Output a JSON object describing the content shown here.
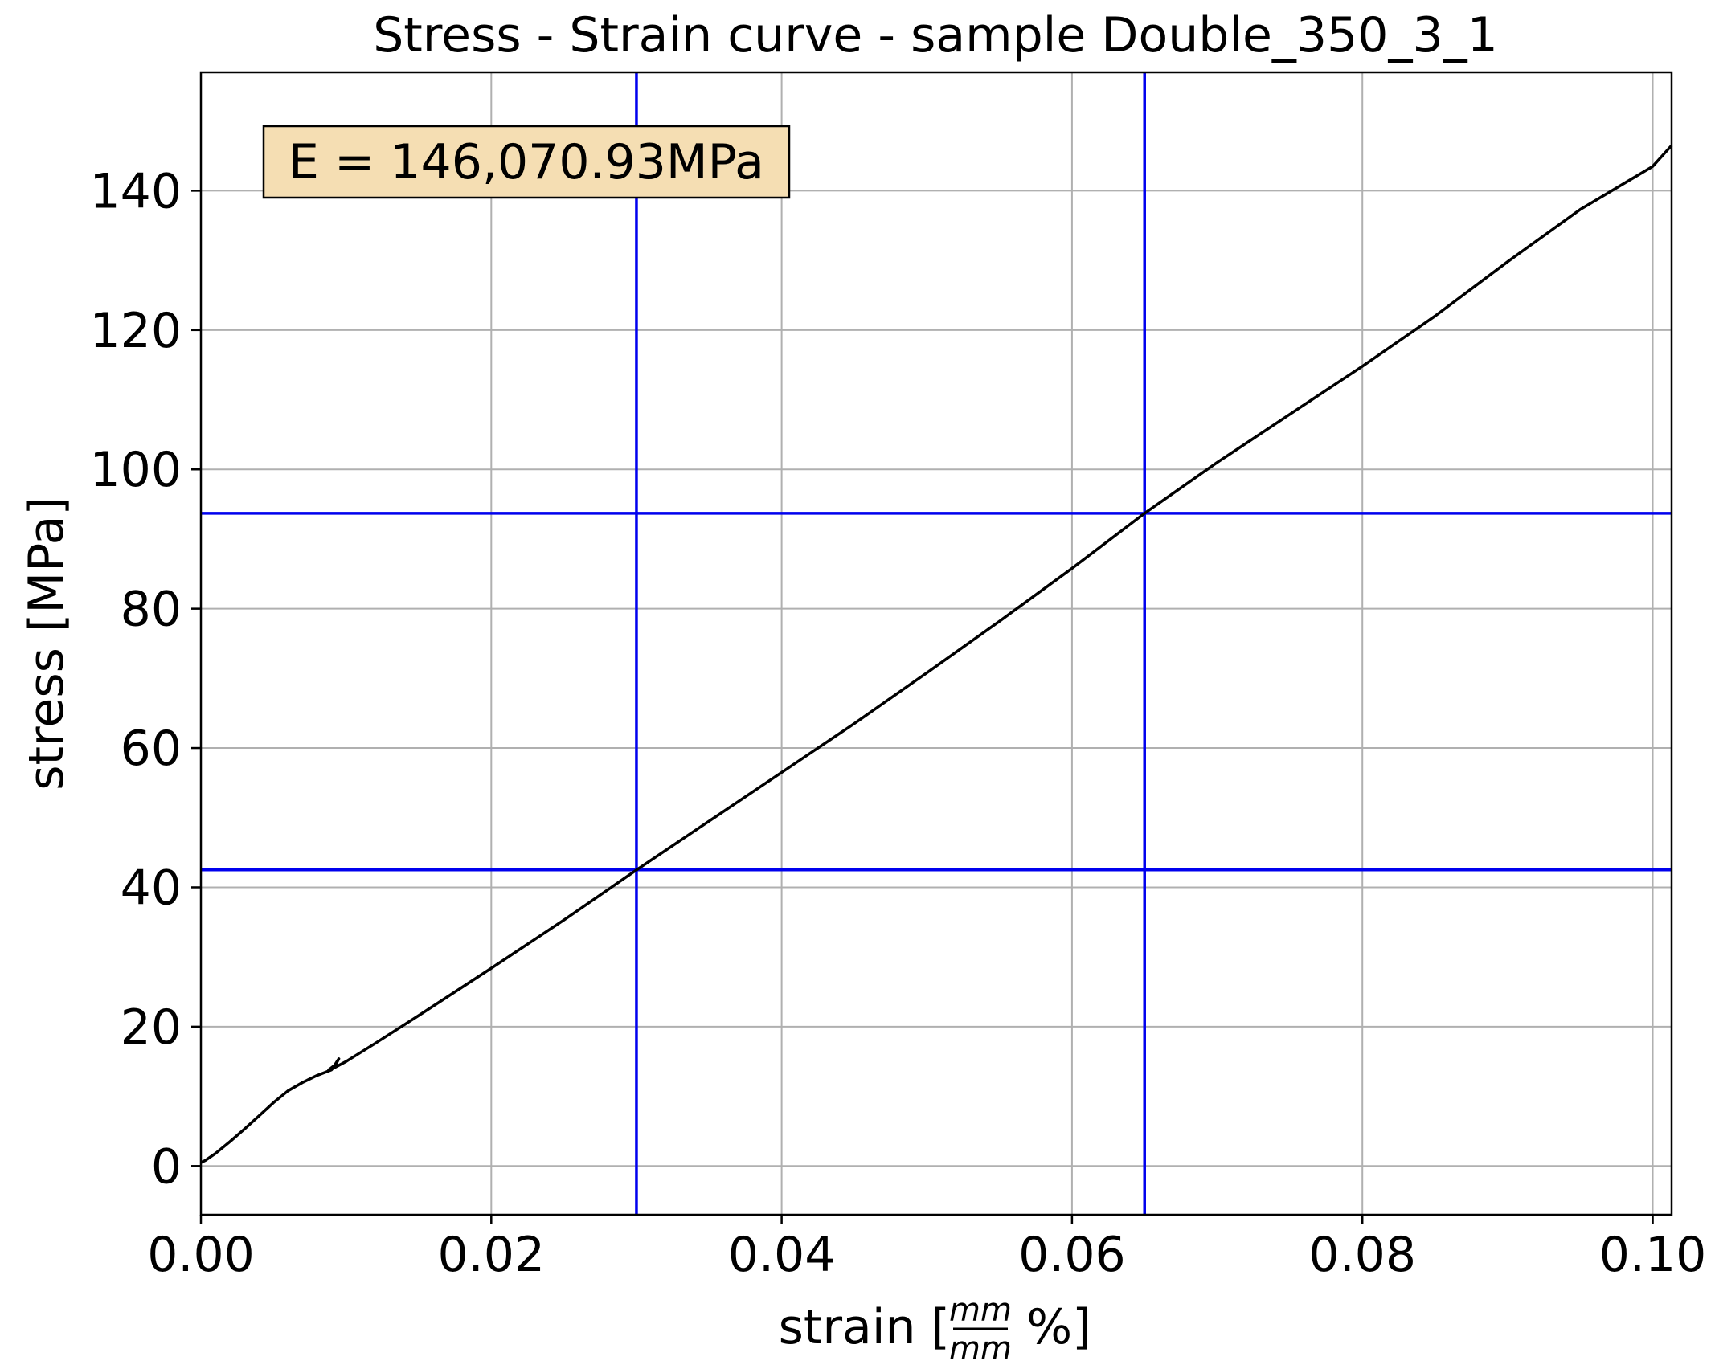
{
  "chart_data": {
    "type": "line",
    "title": "Stress - Strain curve - sample Double_350_3_1",
    "xlabel_prefix": "strain [",
    "xlabel_frac_num": "mm",
    "xlabel_frac_den": "mm",
    "xlabel_suffix": " %]",
    "ylabel": "stress [MPa]",
    "xlim": [
      0.0,
      0.1013
    ],
    "ylim": [
      -7,
      157
    ],
    "xticks": [
      0.0,
      0.02,
      0.04,
      0.06,
      0.08,
      0.1
    ],
    "xtick_labels": [
      "0.00",
      "0.02",
      "0.04",
      "0.06",
      "0.08",
      "0.10"
    ],
    "yticks": [
      0,
      20,
      40,
      60,
      80,
      100,
      120,
      140
    ],
    "ytick_labels": [
      "0",
      "20",
      "40",
      "60",
      "80",
      "100",
      "120",
      "140"
    ],
    "grid": true,
    "annotation": "E = 146,070.93MPa",
    "vlines": [
      0.03,
      0.065
    ],
    "hlines": [
      42.5,
      93.7
    ],
    "colors": {
      "curve": "#000000",
      "markers": "#0000ee",
      "grid": "#b0b0b0",
      "annotation_bg": "#f5deb3"
    },
    "series": [
      {
        "x": [
          0.0,
          0.0003,
          0.001,
          0.002,
          0.003,
          0.004,
          0.005,
          0.006,
          0.007,
          0.008,
          0.009,
          0.0095,
          0.0093,
          0.0088,
          0.009,
          0.01,
          0.012,
          0.015,
          0.02,
          0.025,
          0.03,
          0.035,
          0.04,
          0.045,
          0.05,
          0.055,
          0.06,
          0.065,
          0.07,
          0.075,
          0.08,
          0.085,
          0.09,
          0.095,
          0.1,
          0.1013
        ],
        "y": [
          0.5,
          0.8,
          1.8,
          3.5,
          5.3,
          7.2,
          9.1,
          10.8,
          12.0,
          13.0,
          13.8,
          15.4,
          14.6,
          13.8,
          13.9,
          15.0,
          17.6,
          21.6,
          28.4,
          35.3,
          42.5,
          49.5,
          56.5,
          63.5,
          70.8,
          78.2,
          85.8,
          93.7,
          101.0,
          107.9,
          114.8,
          122.0,
          129.8,
          137.3,
          143.5,
          146.5
        ]
      }
    ]
  }
}
